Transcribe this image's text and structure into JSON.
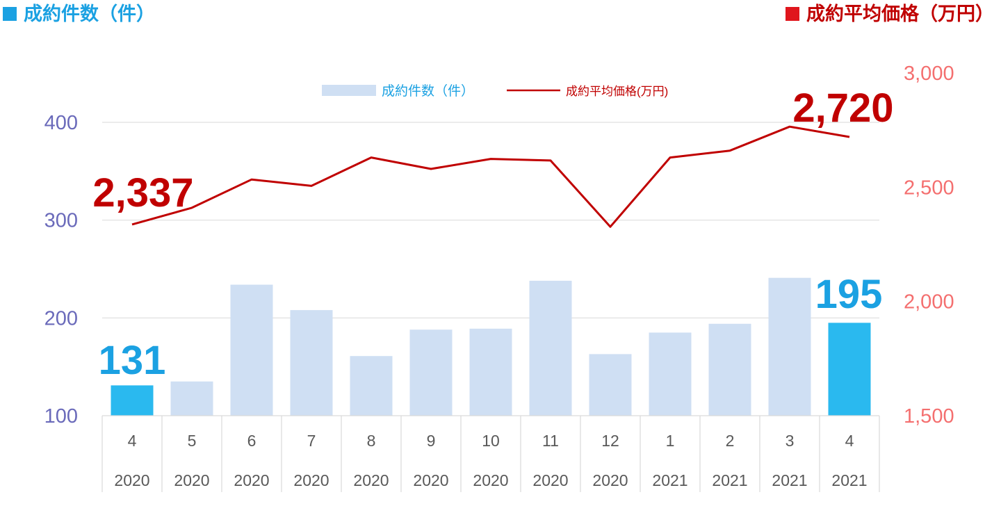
{
  "titles": {
    "left": "成約件数（件）",
    "right": "成約平均価格（万円）"
  },
  "colors": {
    "bar": "#cfdff3",
    "bar_highlight": "#2ab9ef",
    "line": "#c00000",
    "left_axis": "#6a6aba",
    "right_axis": "#f46f6f",
    "left_title": "#1ba1e2",
    "right_title": "#c00000",
    "grid": "#d9d9d9",
    "callout_count": "#1ba1e2",
    "callout_price": "#c00000"
  },
  "chart_data": {
    "type": "bar+line",
    "categories": [
      {
        "month": "4",
        "year": "2020"
      },
      {
        "month": "5",
        "year": "2020"
      },
      {
        "month": "6",
        "year": "2020"
      },
      {
        "month": "7",
        "year": "2020"
      },
      {
        "month": "8",
        "year": "2020"
      },
      {
        "month": "9",
        "year": "2020"
      },
      {
        "month": "10",
        "year": "2020"
      },
      {
        "month": "11",
        "year": "2020"
      },
      {
        "month": "12",
        "year": "2020"
      },
      {
        "month": "1",
        "year": "2021"
      },
      {
        "month": "2",
        "year": "2021"
      },
      {
        "month": "3",
        "year": "2021"
      },
      {
        "month": "4",
        "year": "2021"
      }
    ],
    "series": [
      {
        "name": "成約件数（件）",
        "type": "bar",
        "axis": "left",
        "values": [
          131,
          135,
          234,
          208,
          161,
          188,
          189,
          238,
          163,
          185,
          194,
          241,
          195
        ],
        "highlight": [
          0,
          12
        ]
      },
      {
        "name": "成約平均価格(万円)",
        "type": "line",
        "axis": "right",
        "values": [
          2337,
          2410,
          2534,
          2506,
          2630,
          2580,
          2624,
          2617,
          2327,
          2630,
          2660,
          2765,
          2720
        ]
      }
    ],
    "left_axis": {
      "ylim": [
        100,
        450
      ],
      "ticks": [
        "100",
        "200",
        "300",
        "400"
      ]
    },
    "right_axis": {
      "ylim": [
        1500,
        3000
      ],
      "ticks": [
        "1,500",
        "2,000",
        "2,500",
        "3,000"
      ]
    },
    "legend": {
      "position": "top-center"
    },
    "grid": true,
    "callouts": [
      {
        "text": "131",
        "series": 0,
        "index": 0
      },
      {
        "text": "195",
        "series": 0,
        "index": 12
      },
      {
        "text": "2,337",
        "series": 1,
        "index": 0
      },
      {
        "text": "2,720",
        "series": 1,
        "index": 12
      }
    ]
  }
}
